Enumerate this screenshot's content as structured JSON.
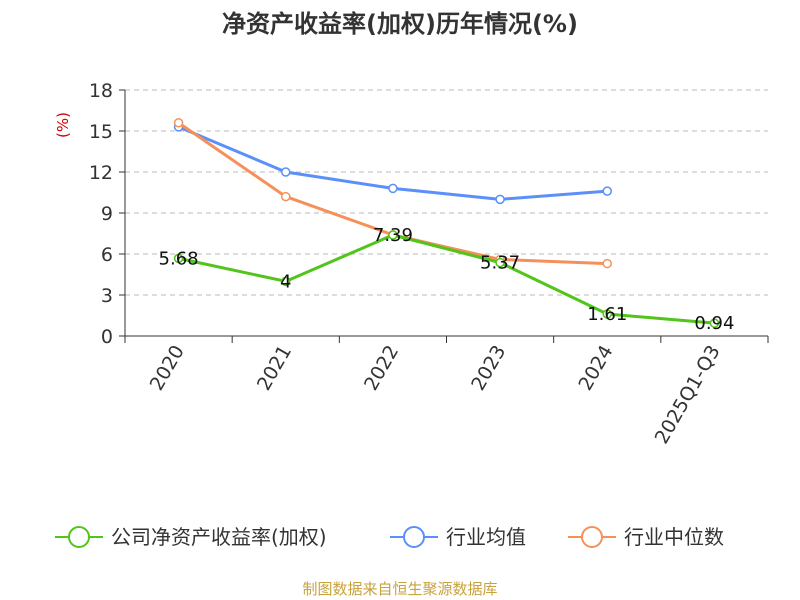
{
  "colors": {
    "company": "#52c41a",
    "industry_avg": "#5b8ff9",
    "industry_median": "#f6905a",
    "axis_label": "#cc0000",
    "source": "#c8a23c",
    "grid": "#bbbbbb",
    "axis": "#333333"
  },
  "chart_data": {
    "type": "line",
    "title": "净资产收益率(加权)历年情况(%)",
    "xlabel": "",
    "ylabel": "(%)",
    "categories": [
      "2020",
      "2021",
      "2022",
      "2023",
      "2024",
      "2025Q1-Q3"
    ],
    "ylim": [
      0,
      18
    ],
    "yticks": [
      0,
      3,
      6,
      9,
      12,
      15,
      18
    ],
    "grid": true,
    "legend_position": "bottom",
    "series": [
      {
        "name": "公司净资产收益率(加权)",
        "color_key": "company",
        "values": [
          5.68,
          4,
          7.39,
          5.37,
          1.61,
          0.94
        ],
        "labels": [
          "5.68",
          "4",
          "7.39",
          "5.37",
          "1.61",
          "0.94"
        ]
      },
      {
        "name": "行业均值",
        "color_key": "industry_avg",
        "values": [
          15.3,
          12.0,
          10.8,
          10.0,
          10.6,
          null
        ]
      },
      {
        "name": "行业中位数",
        "color_key": "industry_median",
        "values": [
          15.6,
          10.2,
          7.4,
          5.6,
          5.3,
          null
        ]
      }
    ]
  },
  "footer": {
    "source": "制图数据来自恒生聚源数据库"
  }
}
